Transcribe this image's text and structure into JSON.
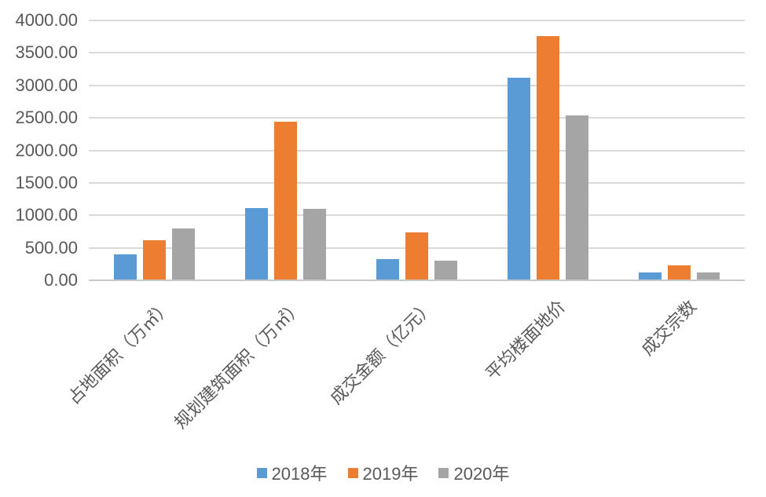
{
  "chart_data": {
    "type": "bar",
    "title": "",
    "categories": [
      "占地面积（万㎡）",
      "规划建筑面积（万㎡）",
      "成交金额（亿元）",
      "平均楼面地价",
      "成交宗数"
    ],
    "series": [
      {
        "name": "2018年",
        "color": "#5B9BD5",
        "values": [
          385,
          1100,
          315,
          3100,
          105
        ]
      },
      {
        "name": "2019年",
        "color": "#ED7D31",
        "values": [
          610,
          2430,
          720,
          3750,
          215
        ]
      },
      {
        "name": "2020年",
        "color": "#A5A5A5",
        "values": [
          780,
          1090,
          295,
          2530,
          110
        ]
      }
    ],
    "y_axis": {
      "min": 0,
      "max": 4000,
      "step": 500,
      "ticks": [
        "4000.00",
        "3500.00",
        "3000.00",
        "2500.00",
        "2000.00",
        "1500.00",
        "1000.00",
        "500.00",
        "0.00"
      ]
    },
    "x_axis_label_rotation_deg": 45,
    "grid": true,
    "legend_position": "bottom",
    "colors": {
      "grid_line": "#DADADA",
      "axis_line": "#C9C9C9",
      "text": "#595959",
      "background": "#FFFFFF"
    }
  }
}
